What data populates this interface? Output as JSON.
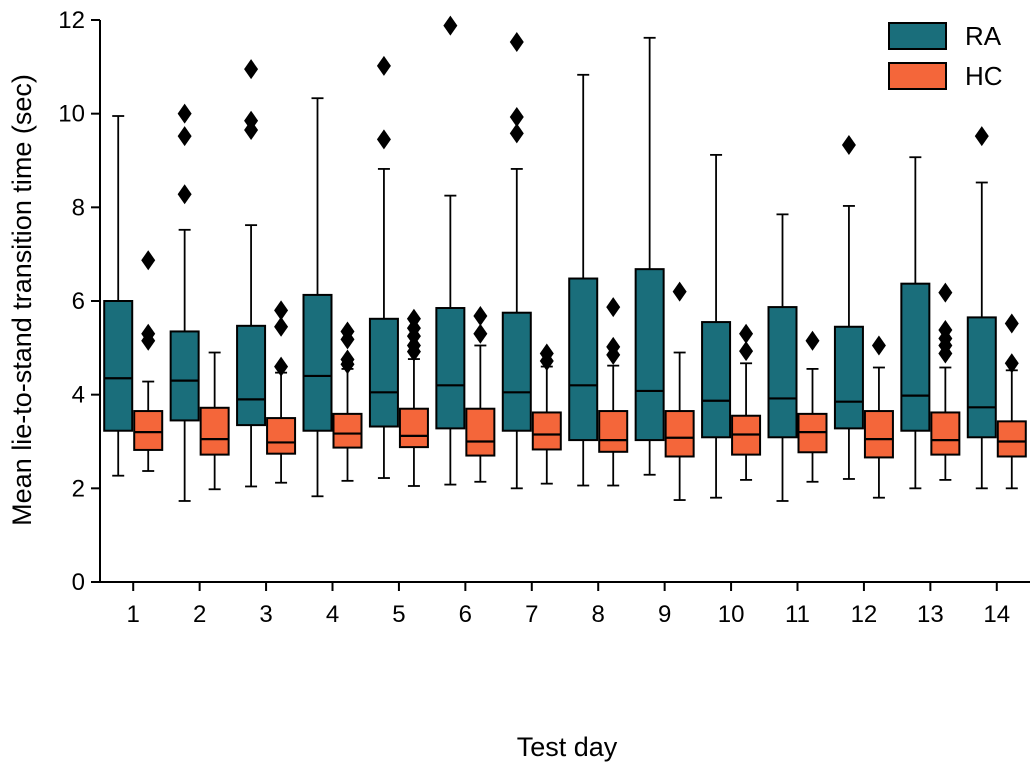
{
  "chart_data": {
    "type": "boxplot",
    "xlabel": "Test day",
    "ylabel": "Mean lie-to-stand transition time (sec)",
    "ylim": [
      0,
      12
    ],
    "yticks": [
      0,
      2,
      4,
      6,
      8,
      10,
      12
    ],
    "categories": [
      "1",
      "2",
      "3",
      "4",
      "5",
      "6",
      "7",
      "8",
      "9",
      "10",
      "11",
      "12",
      "13",
      "14"
    ],
    "grid": false,
    "legend": {
      "position": "top-right"
    },
    "series": [
      {
        "name": "RA",
        "color": "#1a6e7b",
        "boxes": [
          {
            "whisker_low": 2.27,
            "q1": 3.23,
            "median": 4.35,
            "q3": 6.0,
            "whisker_high": 9.95,
            "outliers": []
          },
          {
            "whisker_low": 1.73,
            "q1": 3.45,
            "median": 4.3,
            "q3": 5.35,
            "whisker_high": 7.52,
            "outliers": [
              8.28,
              9.52,
              10.0
            ]
          },
          {
            "whisker_low": 2.04,
            "q1": 3.35,
            "median": 3.9,
            "q3": 5.47,
            "whisker_high": 7.62,
            "outliers": [
              9.65,
              9.85,
              10.95
            ]
          },
          {
            "whisker_low": 1.83,
            "q1": 3.23,
            "median": 4.4,
            "q3": 6.13,
            "whisker_high": 10.33,
            "outliers": []
          },
          {
            "whisker_low": 2.22,
            "q1": 3.32,
            "median": 4.05,
            "q3": 5.62,
            "whisker_high": 8.82,
            "outliers": [
              9.45,
              11.02
            ]
          },
          {
            "whisker_low": 2.08,
            "q1": 3.28,
            "median": 4.2,
            "q3": 5.85,
            "whisker_high": 8.25,
            "outliers": [
              11.88
            ]
          },
          {
            "whisker_low": 2.0,
            "q1": 3.23,
            "median": 4.05,
            "q3": 5.75,
            "whisker_high": 8.82,
            "outliers": [
              9.58,
              9.93,
              11.53
            ]
          },
          {
            "whisker_low": 2.06,
            "q1": 3.03,
            "median": 4.2,
            "q3": 6.48,
            "whisker_high": 10.83,
            "outliers": []
          },
          {
            "whisker_low": 2.29,
            "q1": 3.03,
            "median": 4.08,
            "q3": 6.68,
            "whisker_high": 11.62,
            "outliers": []
          },
          {
            "whisker_low": 1.8,
            "q1": 3.09,
            "median": 3.87,
            "q3": 5.55,
            "whisker_high": 9.12,
            "outliers": []
          },
          {
            "whisker_low": 1.73,
            "q1": 3.09,
            "median": 3.92,
            "q3": 5.87,
            "whisker_high": 7.85,
            "outliers": []
          },
          {
            "whisker_low": 2.2,
            "q1": 3.28,
            "median": 3.85,
            "q3": 5.45,
            "whisker_high": 8.03,
            "outliers": [
              9.33
            ]
          },
          {
            "whisker_low": 2.0,
            "q1": 3.23,
            "median": 3.98,
            "q3": 6.37,
            "whisker_high": 9.07,
            "outliers": []
          },
          {
            "whisker_low": 2.0,
            "q1": 3.09,
            "median": 3.73,
            "q3": 5.65,
            "whisker_high": 8.53,
            "outliers": [
              9.52
            ]
          }
        ]
      },
      {
        "name": "HC",
        "color": "#f4663a",
        "boxes": [
          {
            "whisker_low": 2.37,
            "q1": 2.82,
            "median": 3.2,
            "q3": 3.65,
            "whisker_high": 4.28,
            "outliers": [
              5.15,
              5.3,
              6.87
            ]
          },
          {
            "whisker_low": 1.98,
            "q1": 2.72,
            "median": 3.05,
            "q3": 3.72,
            "whisker_high": 4.9,
            "outliers": []
          },
          {
            "whisker_low": 2.12,
            "q1": 2.74,
            "median": 2.98,
            "q3": 3.5,
            "whisker_high": 4.47,
            "outliers": [
              4.6,
              5.45,
              5.8
            ]
          },
          {
            "whisker_low": 2.16,
            "q1": 2.87,
            "median": 3.17,
            "q3": 3.59,
            "whisker_high": 4.55,
            "outliers": [
              4.65,
              4.75,
              5.18,
              5.35
            ]
          },
          {
            "whisker_low": 2.05,
            "q1": 2.88,
            "median": 3.12,
            "q3": 3.7,
            "whisker_high": 4.76,
            "outliers": [
              4.92,
              5.05,
              5.25,
              5.42,
              5.62
            ]
          },
          {
            "whisker_low": 2.14,
            "q1": 2.7,
            "median": 3.0,
            "q3": 3.7,
            "whisker_high": 5.05,
            "outliers": [
              5.3,
              5.68
            ]
          },
          {
            "whisker_low": 2.1,
            "q1": 2.83,
            "median": 3.15,
            "q3": 3.62,
            "whisker_high": 4.6,
            "outliers": [
              4.72,
              4.88
            ]
          },
          {
            "whisker_low": 2.06,
            "q1": 2.78,
            "median": 3.03,
            "q3": 3.65,
            "whisker_high": 4.62,
            "outliers": [
              4.85,
              5.02,
              5.87
            ]
          },
          {
            "whisker_low": 1.75,
            "q1": 2.68,
            "median": 3.08,
            "q3": 3.65,
            "whisker_high": 4.9,
            "outliers": [
              6.2
            ]
          },
          {
            "whisker_low": 2.18,
            "q1": 2.72,
            "median": 3.15,
            "q3": 3.55,
            "whisker_high": 4.67,
            "outliers": [
              4.93,
              5.3
            ]
          },
          {
            "whisker_low": 2.14,
            "q1": 2.77,
            "median": 3.2,
            "q3": 3.59,
            "whisker_high": 4.55,
            "outliers": [
              5.15
            ]
          },
          {
            "whisker_low": 1.8,
            "q1": 2.66,
            "median": 3.05,
            "q3": 3.65,
            "whisker_high": 4.58,
            "outliers": [
              5.05
            ]
          },
          {
            "whisker_low": 2.18,
            "q1": 2.72,
            "median": 3.03,
            "q3": 3.62,
            "whisker_high": 4.58,
            "outliers": [
              4.88,
              5.05,
              5.2,
              5.38,
              6.18
            ]
          },
          {
            "whisker_low": 2.0,
            "q1": 2.68,
            "median": 3.0,
            "q3": 3.43,
            "whisker_high": 4.52,
            "outliers": [
              4.67,
              5.52
            ]
          }
        ]
      }
    ]
  }
}
